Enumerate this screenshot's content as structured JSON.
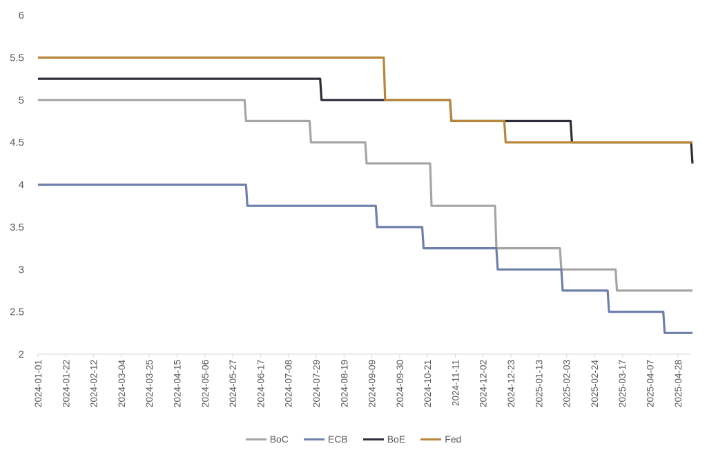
{
  "chart_data": {
    "type": "line",
    "title": "",
    "xlabel": "",
    "ylabel": "",
    "ylim": [
      2,
      6
    ],
    "y_ticks": [
      "2",
      "2.5",
      "3",
      "3.5",
      "4",
      "4.5",
      "5",
      "5.5",
      "6"
    ],
    "x_tick_labels": [
      "2024-01-01",
      "2024-01-22",
      "2024-02-12",
      "2024-03-04",
      "2024-03-25",
      "2024-04-15",
      "2024-05-06",
      "2024-05-27",
      "2024-06-17",
      "2024-07-08",
      "2024-07-29",
      "2024-08-19",
      "2024-09-09",
      "2024-09-30",
      "2024-10-21",
      "2024-11-11",
      "2024-12-02",
      "2024-12-23",
      "2025-01-13",
      "2025-02-03",
      "2025-02-24",
      "2025-03-17",
      "2025-04-07",
      "2025-04-28"
    ],
    "x_range": [
      "2024-01-01",
      "2025-05-08"
    ],
    "step": true,
    "legend_position": "bottom",
    "gridlines": false,
    "series": [
      {
        "name": "BoC",
        "color": "#a5a5a5",
        "points": [
          [
            "2024-01-01",
            5.0
          ],
          [
            "2024-06-05",
            4.75
          ],
          [
            "2024-07-24",
            4.5
          ],
          [
            "2024-09-04",
            4.25
          ],
          [
            "2024-10-23",
            3.75
          ],
          [
            "2024-12-11",
            3.25
          ],
          [
            "2025-01-29",
            3.0
          ],
          [
            "2025-03-12",
            2.75
          ],
          [
            "2025-05-08",
            2.75
          ]
        ]
      },
      {
        "name": "ECB",
        "color": "#6f7fab",
        "points": [
          [
            "2024-01-01",
            4.0
          ],
          [
            "2024-06-06",
            3.75
          ],
          [
            "2024-09-12",
            3.5
          ],
          [
            "2024-10-17",
            3.25
          ],
          [
            "2024-12-12",
            3.0
          ],
          [
            "2025-01-30",
            2.75
          ],
          [
            "2025-03-06",
            2.5
          ],
          [
            "2025-04-17",
            2.25
          ],
          [
            "2025-05-08",
            2.25
          ]
        ]
      },
      {
        "name": "BoE",
        "color": "#2b2e38",
        "points": [
          [
            "2024-01-01",
            5.25
          ],
          [
            "2024-08-01",
            5.0
          ],
          [
            "2024-11-07",
            4.75
          ],
          [
            "2025-02-06",
            4.5
          ],
          [
            "2025-05-08",
            4.25
          ]
        ]
      },
      {
        "name": "Fed",
        "color": "#b8863b",
        "points": [
          [
            "2024-01-01",
            5.5
          ],
          [
            "2024-09-18",
            5.0
          ],
          [
            "2024-11-07",
            4.75
          ],
          [
            "2024-12-18",
            4.5
          ],
          [
            "2025-05-08",
            4.5
          ]
        ]
      }
    ]
  }
}
